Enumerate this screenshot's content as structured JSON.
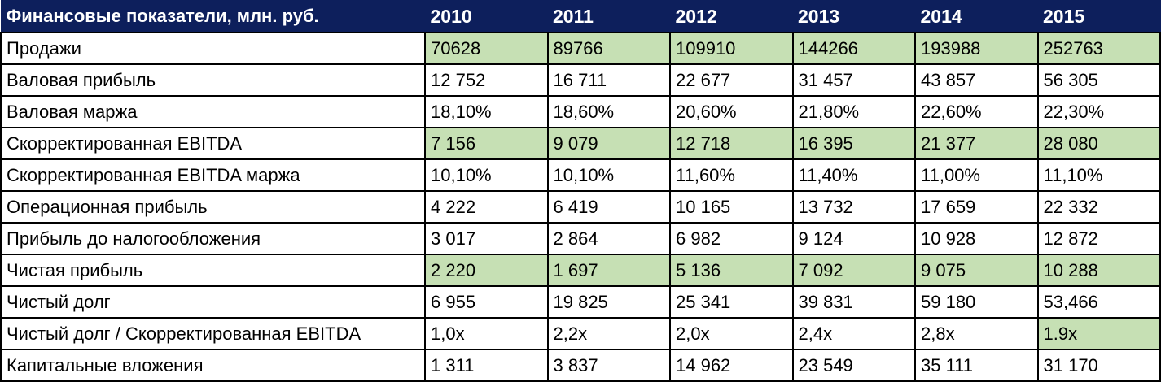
{
  "table": {
    "header": [
      "Финансовые показатели, млн. руб.",
      "2010",
      "2011",
      "2012",
      "2013",
      "2014",
      "2015"
    ],
    "highlight_color": "#c6e0b4",
    "header_color": "#0d1f5c",
    "rows": [
      {
        "label": "Продажи",
        "values": [
          "70628",
          "89766",
          "109910",
          "144266",
          "193988",
          "252763"
        ],
        "highlight": [
          true,
          true,
          true,
          true,
          true,
          true
        ]
      },
      {
        "label": "Валовая прибыль",
        "values": [
          "12 752",
          "16 711",
          "22 677",
          "31 457",
          "43 857",
          "56 305"
        ],
        "highlight": [
          false,
          false,
          false,
          false,
          false,
          false
        ]
      },
      {
        "label": "Валовая маржа",
        "values": [
          "18,10%",
          "18,60%",
          "20,60%",
          "21,80%",
          "22,60%",
          "22,30%"
        ],
        "highlight": [
          false,
          false,
          false,
          false,
          false,
          false
        ]
      },
      {
        "label": "Скорректированная EBITDA",
        "values": [
          "7 156",
          "9 079",
          "12 718",
          "16 395",
          "21 377",
          "28 080"
        ],
        "highlight": [
          true,
          true,
          true,
          true,
          true,
          true
        ]
      },
      {
        "label": "Скорректированная EBITDA маржа",
        "values": [
          "10,10%",
          "10,10%",
          "11,60%",
          "11,40%",
          "11,00%",
          "11,10%"
        ],
        "highlight": [
          false,
          false,
          false,
          false,
          false,
          false
        ]
      },
      {
        "label": "Операционная прибыль",
        "values": [
          "4 222",
          "6 419",
          "10 165",
          "13 732",
          "17 659",
          "22 332"
        ],
        "highlight": [
          false,
          false,
          false,
          false,
          false,
          false
        ]
      },
      {
        "label": "Прибыль до налогообложения",
        "values": [
          "3 017",
          "2 864",
          "6 982",
          "9 124",
          "10 928",
          "12 872"
        ],
        "highlight": [
          false,
          false,
          false,
          false,
          false,
          false
        ]
      },
      {
        "label": "Чистая прибыль",
        "values": [
          "2 220",
          "1 697",
          "5 136",
          "7 092",
          "9 075",
          "10 288"
        ],
        "highlight": [
          true,
          true,
          true,
          true,
          true,
          true
        ]
      },
      {
        "label": "Чистый долг",
        "values": [
          "6 955",
          "19 825",
          "25 341",
          "39 831",
          "59 180",
          "53,466"
        ],
        "highlight": [
          false,
          false,
          false,
          false,
          false,
          false
        ]
      },
      {
        "label": "Чистый долг / Скорректированная EBITDA",
        "values": [
          "1,0x",
          "2,2x",
          "2,0x",
          "2,4x",
          "2,8x",
          "1.9x"
        ],
        "highlight": [
          false,
          false,
          false,
          false,
          false,
          true
        ]
      },
      {
        "label": "Капитальные вложения",
        "values": [
          "1 311",
          "3 837",
          "14 962",
          "23 549",
          "35 111",
          "31 170"
        ],
        "highlight": [
          false,
          false,
          false,
          false,
          false,
          false
        ]
      }
    ]
  }
}
